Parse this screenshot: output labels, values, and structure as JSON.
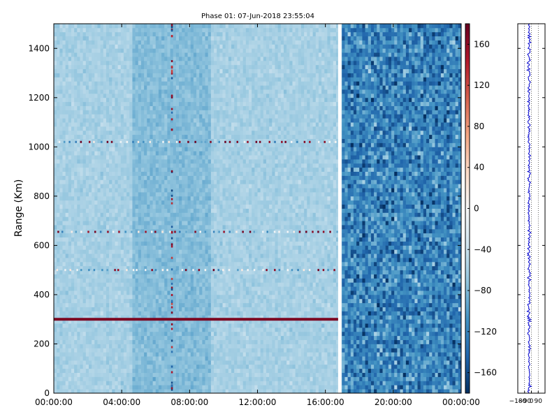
{
  "chart_data": [
    {
      "type": "heatmap",
      "title": "Phase 01: 07-Jun-2018 23:55:04",
      "ylabel": "Range (Km)",
      "xlabel": "",
      "x_ticks": [
        "00:00:00",
        "04:00:00",
        "08:00:00",
        "12:00:00",
        "16:00:00",
        "20:00:00",
        "00:00:00"
      ],
      "x_range_hours": [
        0,
        24
      ],
      "y_ticks": [
        0,
        200,
        400,
        600,
        800,
        1000,
        1200,
        1400
      ],
      "ylim": [
        0,
        1500
      ],
      "colorbar": {
        "ticks": [
          160,
          120,
          80,
          40,
          0,
          -40,
          -80,
          -120,
          -160
        ],
        "range": [
          -180,
          180
        ],
        "colormap": "RdBu_r"
      },
      "data_gap_hours": [
        16.75,
        16.95
      ],
      "features": [
        {
          "kind": "strong positive horizontal band",
          "range_km": 300,
          "hours": [
            0,
            16.75
          ],
          "value": 170
        },
        {
          "kind": "intermittent horizontal line",
          "range_km": 1020,
          "hours": [
            0,
            16.75
          ]
        },
        {
          "kind": "intermittent horizontal line",
          "range_km": 500,
          "hours": [
            0,
            16.75
          ]
        },
        {
          "kind": "intermittent horizontal line",
          "range_km": 655,
          "hours": [
            0,
            16.75
          ]
        },
        {
          "kind": "vertical noisy column",
          "hours": 6.95
        }
      ],
      "background_level": -60,
      "noisy_region_hours": [
        16.95,
        24
      ],
      "noisy_region_level": -120
    },
    {
      "type": "line",
      "title": "",
      "x_ticks": [
        "−180",
        "−90",
        "0",
        "90"
      ],
      "xlim": [
        -180,
        180
      ],
      "ylim": [
        0,
        1500
      ],
      "grid": true,
      "series": [
        {
          "mean": -30,
          "spread": 15,
          "color": "#0000cc"
        }
      ]
    }
  ]
}
